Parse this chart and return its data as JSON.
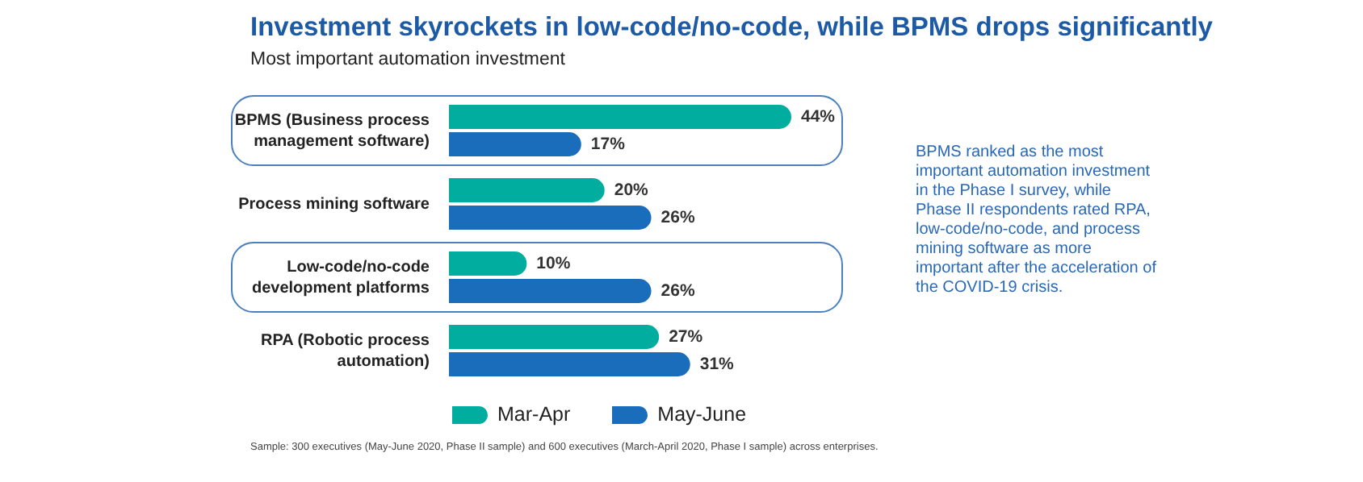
{
  "chart_data": {
    "type": "bar",
    "orientation": "horizontal",
    "title": "Investment skyrockets in low-code/no-code, while BPMS drops significantly",
    "subtitle": "Most important automation investment",
    "categories": [
      "BPMS (Business process management software)",
      "Process mining software",
      "Low-code/no-code development platforms",
      "RPA (Robotic process automation)"
    ],
    "series": [
      {
        "name": "Mar-Apr",
        "color": "#00ad9f",
        "values": [
          44,
          20,
          10,
          27
        ],
        "value_labels": [
          "44%",
          "20%",
          "10%",
          "27%"
        ]
      },
      {
        "name": "May-June",
        "color": "#1a6dbb",
        "values": [
          17,
          26,
          26,
          31
        ],
        "value_labels": [
          "17%",
          "26%",
          "26%",
          "31%"
        ]
      }
    ],
    "legend": "bottom",
    "grid": false,
    "annotations": [
      "BPMS ranked as the most important automation investment in the Phase I survey, while Phase II respondents rated RPA, low-code/no-code, and process mining software as more important after the acceleration of the COVID-19 crisis.",
      "Sample: 300 executives (May-June 2020, Phase II sample) and 600 executives (March-April 2020, Phase I sample) across enterprises."
    ]
  }
}
